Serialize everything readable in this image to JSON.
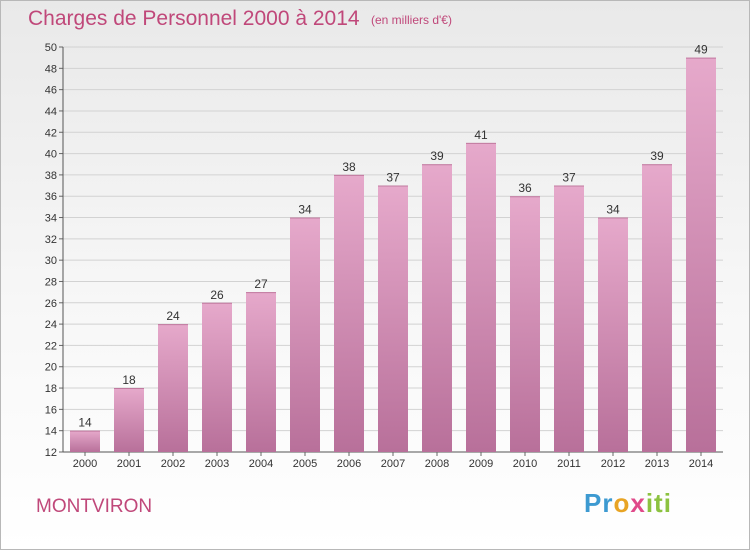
{
  "header": {
    "title": "Charges de Personnel 2000 à 2014",
    "subtitle": "(en milliers d'€)"
  },
  "footer": {
    "place": "MONTVIRON",
    "logo": "Proxiti"
  },
  "colors": {
    "title": "#c0487a",
    "bar_top": "#e6a9cb",
    "bar_bottom": "#b8709a",
    "background_top": "#e9e9e9",
    "background_bottom": "#ffffff"
  },
  "chart_data": {
    "type": "bar",
    "title": "Charges de Personnel 2000 à 2014",
    "subtitle": "(en milliers d'€)",
    "categories": [
      "2000",
      "2001",
      "2002",
      "2003",
      "2004",
      "2005",
      "2006",
      "2007",
      "2008",
      "2009",
      "2010",
      "2011",
      "2012",
      "2013",
      "2014"
    ],
    "values": [
      14,
      18,
      24,
      26,
      27,
      34,
      38,
      37,
      39,
      41,
      36,
      37,
      34,
      39,
      49
    ],
    "ylim": [
      12,
      50
    ],
    "yticks": [
      12,
      14,
      16,
      18,
      20,
      22,
      24,
      26,
      28,
      30,
      32,
      34,
      36,
      38,
      40,
      42,
      44,
      46,
      48,
      50
    ],
    "grid": true,
    "data_labels": true
  }
}
